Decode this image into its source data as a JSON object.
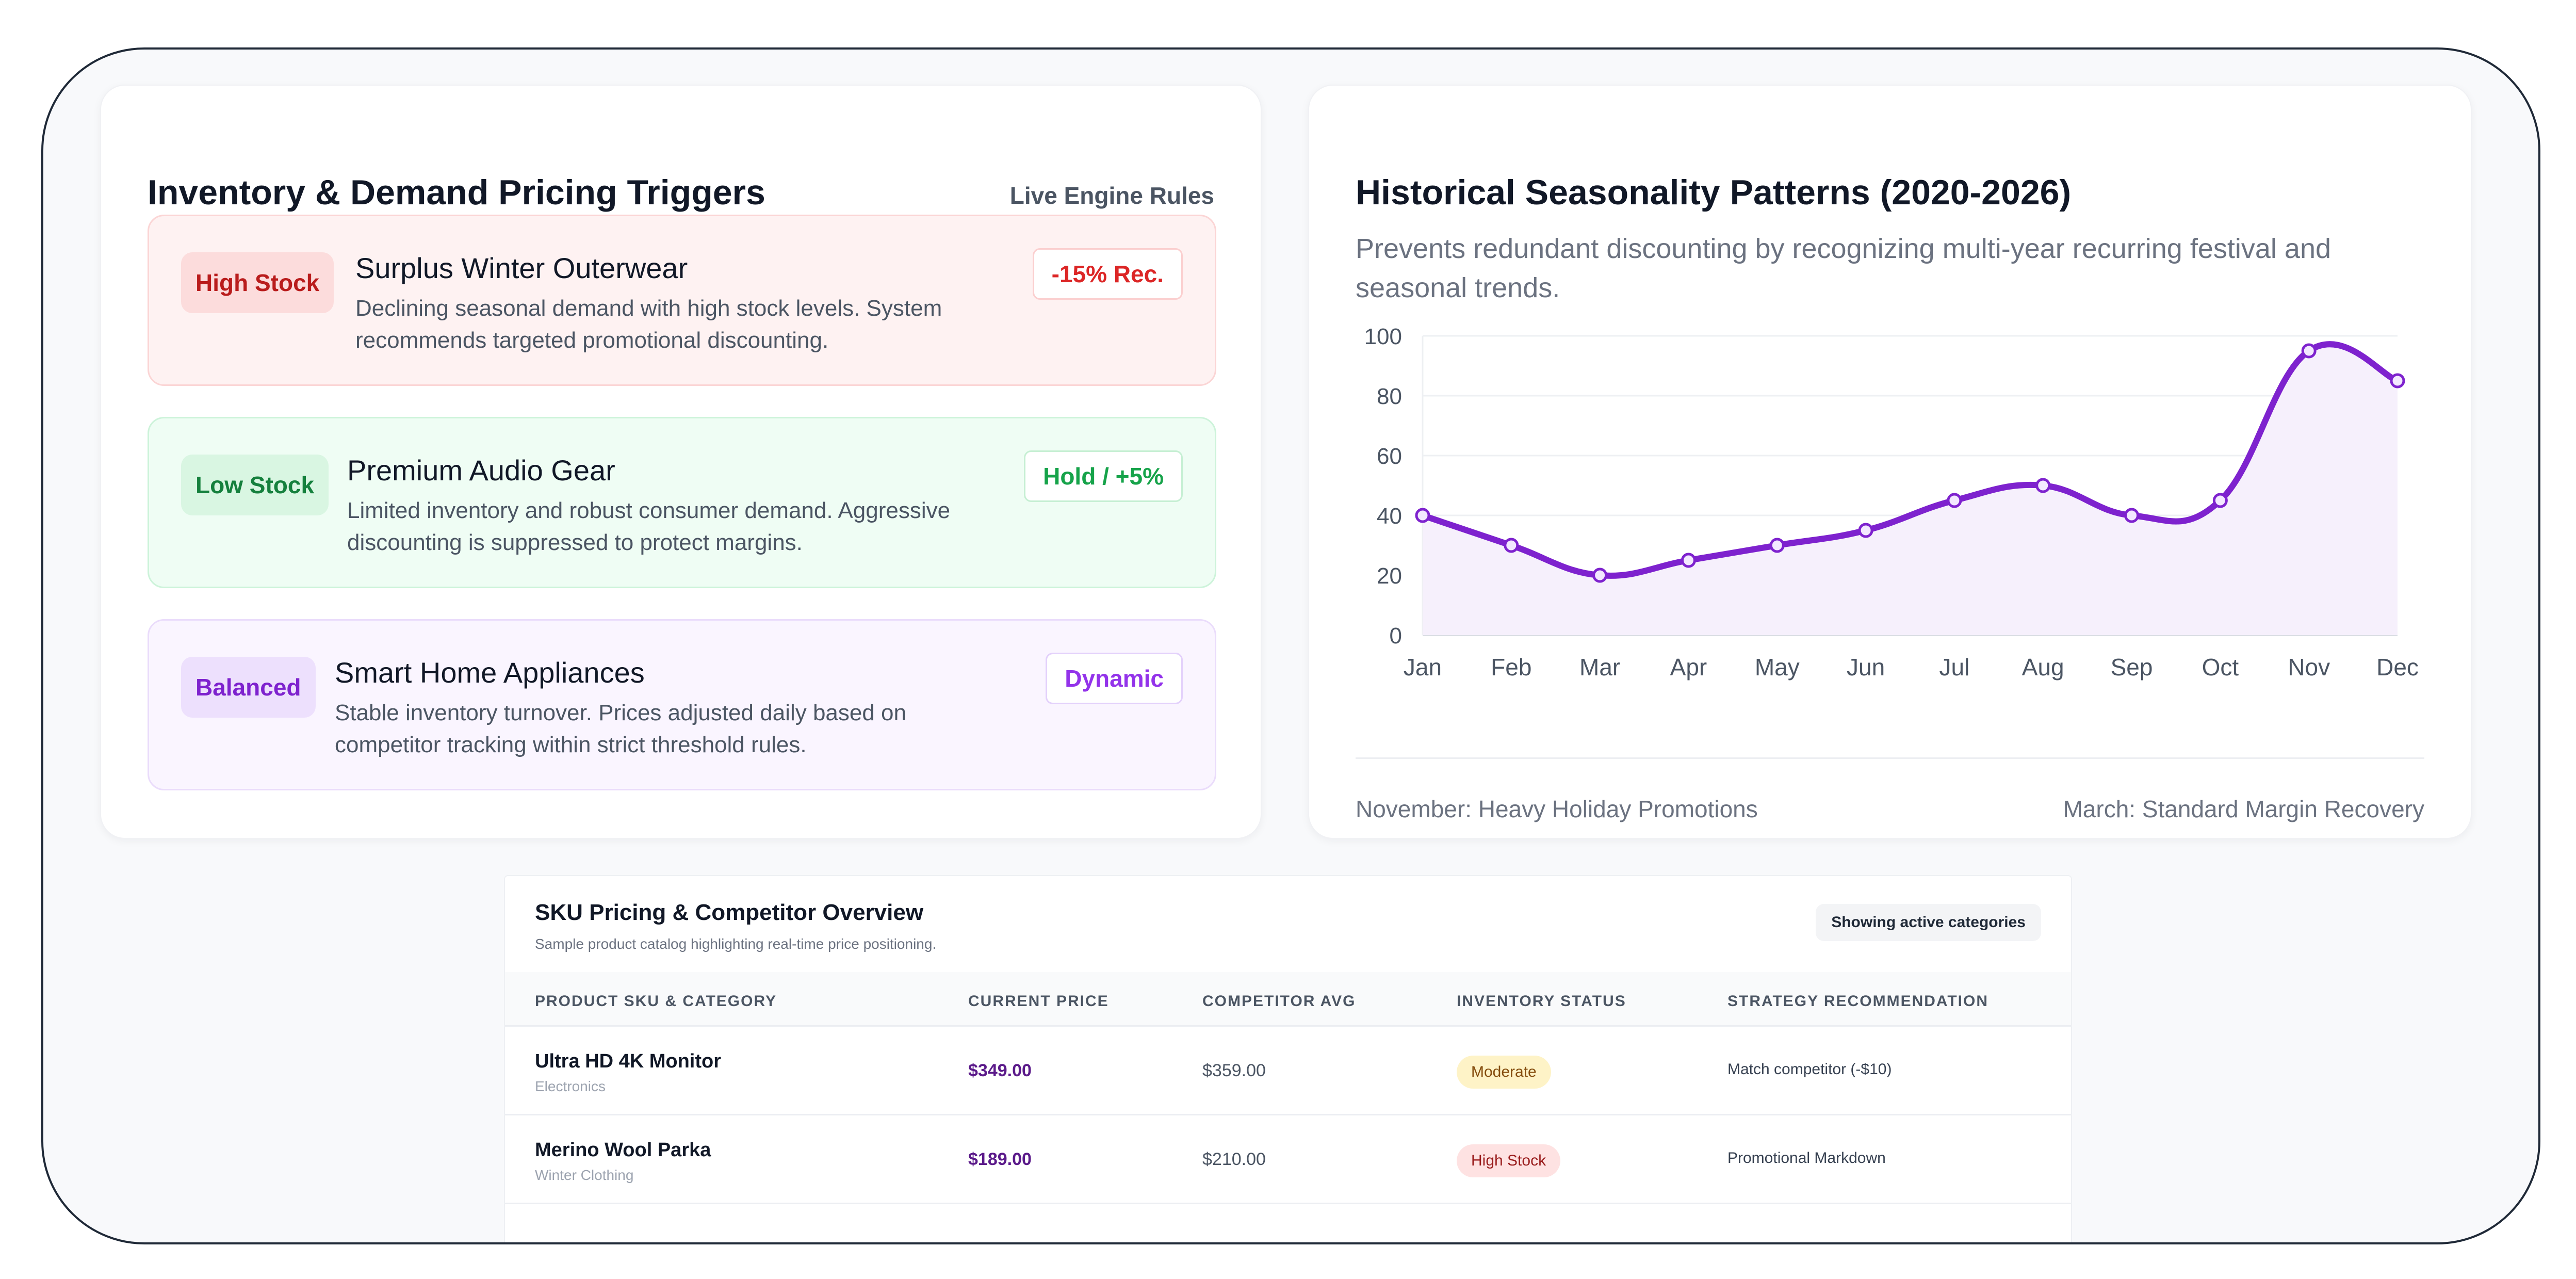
{
  "inventory": {
    "title": "Inventory & Demand Pricing Triggers",
    "live_rules": "Live Engine Rules",
    "triggers": [
      {
        "badge": "High Stock",
        "name": "Surplus Winter Outerwear",
        "desc": "Declining seasonal demand with high stock levels. System recommends targeted promotional discounting.",
        "rec": "-15% Rec."
      },
      {
        "badge": "Low Stock",
        "name": "Premium Audio Gear",
        "desc": "Limited inventory and robust consumer demand. Aggressive discounting is suppressed to protect margins.",
        "rec": "Hold / +5%"
      },
      {
        "badge": "Balanced",
        "name": "Smart Home Appliances",
        "desc": "Stable inventory turnover. Prices adjusted daily based on competitor tracking within strict threshold rules.",
        "rec": "Dynamic"
      }
    ]
  },
  "seasonality": {
    "title": "Historical Seasonality Patterns (2020-2026)",
    "subtitle": "Prevents redundant discounting by recognizing multi-year recurring festival and seasonal trends.",
    "note_left": "November: Heavy Holiday Promotions",
    "note_right": "March: Standard Margin Recovery"
  },
  "chart_data": {
    "type": "line",
    "categories": [
      "Jan",
      "Feb",
      "Mar",
      "Apr",
      "May",
      "Jun",
      "Jul",
      "Aug",
      "Sep",
      "Oct",
      "Nov",
      "Dec"
    ],
    "series": [
      {
        "values": [
          40,
          30,
          20,
          25,
          30,
          35,
          45,
          50,
          40,
          45,
          95,
          85
        ]
      }
    ],
    "ylim": [
      0,
      100
    ],
    "yticks": [
      0,
      20,
      40,
      60,
      80,
      100
    ],
    "grid": true,
    "color": "#7e22ce",
    "fill": "#f6f0fc"
  },
  "sku_table": {
    "title": "SKU Pricing & Competitor Overview",
    "subtitle": "Sample product catalog highlighting real-time price positioning.",
    "badge": "Showing active categories",
    "columns": [
      "PRODUCT SKU & CATEGORY",
      "CURRENT PRICE",
      "COMPETITOR AVG",
      "INVENTORY STATUS",
      "STRATEGY RECOMMENDATION"
    ],
    "rows": [
      {
        "name": "Ultra HD 4K Monitor",
        "category": "Electronics",
        "price": "$349.00",
        "competitor": "$359.00",
        "status": "Moderate",
        "strategy": "Match competitor (-$10)"
      },
      {
        "name": "Merino Wool Parka",
        "category": "Winter Clothing",
        "price": "$189.00",
        "competitor": "$210.00",
        "status": "High Stock",
        "strategy": "Promotional Markdown"
      }
    ]
  }
}
